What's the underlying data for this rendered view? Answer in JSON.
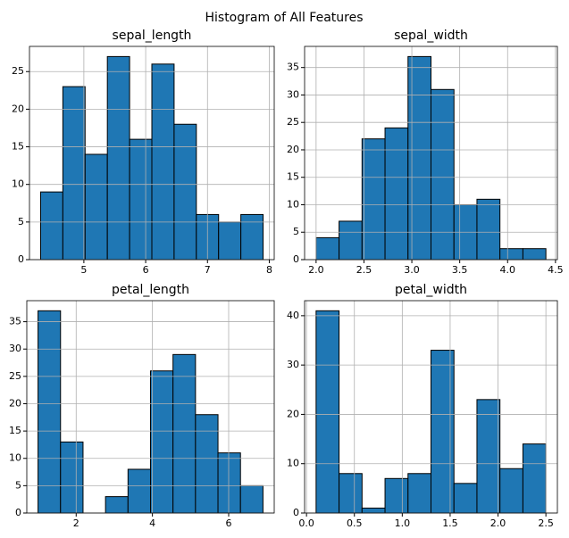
{
  "title": "Histogram of All Features",
  "chart_data": [
    {
      "type": "histogram",
      "title": "sepal_length",
      "color": "#1f77b4",
      "edgecolor": "#000000",
      "grid": true,
      "bins": [
        4.3,
        4.66,
        5.02,
        5.38,
        5.74,
        6.1,
        6.46,
        6.82,
        7.18,
        7.54,
        7.9
      ],
      "values": [
        9,
        23,
        14,
        27,
        16,
        26,
        18,
        6,
        5,
        6
      ],
      "xlim": [
        4.12,
        8.08
      ],
      "ylim": [
        0,
        28.35
      ],
      "xticks": [
        5,
        6,
        7,
        8
      ],
      "yticks": [
        0,
        5,
        10,
        15,
        20,
        25
      ]
    },
    {
      "type": "histogram",
      "title": "sepal_width",
      "color": "#1f77b4",
      "edgecolor": "#000000",
      "grid": true,
      "bins": [
        2.0,
        2.24,
        2.48,
        2.72,
        2.96,
        3.2,
        3.44,
        3.68,
        3.92,
        4.16,
        4.4
      ],
      "values": [
        4,
        7,
        22,
        24,
        37,
        31,
        10,
        11,
        2,
        2
      ],
      "xlim": [
        1.88,
        4.52
      ],
      "ylim": [
        0,
        38.85
      ],
      "xticks": [
        {
          "value": 2,
          "label": "2.0"
        },
        2.5,
        {
          "value": 3,
          "label": "3.0"
        },
        3.5,
        {
          "value": 4,
          "label": "4.0"
        },
        4.5
      ],
      "yticks": [
        0,
        5,
        10,
        15,
        20,
        25,
        30,
        35
      ]
    },
    {
      "type": "histogram",
      "title": "petal_length",
      "color": "#1f77b4",
      "edgecolor": "#000000",
      "grid": true,
      "bins": [
        1.0,
        1.59,
        2.18,
        2.77,
        3.36,
        3.95,
        4.54,
        5.13,
        5.72,
        6.31,
        6.9
      ],
      "values": [
        37,
        13,
        0,
        3,
        8,
        26,
        29,
        18,
        11,
        5
      ],
      "xlim": [
        0.705,
        7.195
      ],
      "ylim": [
        0,
        38.85
      ],
      "xticks": [
        2,
        4,
        6
      ],
      "yticks": [
        0,
        5,
        10,
        15,
        20,
        25,
        30,
        35
      ]
    },
    {
      "type": "histogram",
      "title": "petal_width",
      "color": "#1f77b4",
      "edgecolor": "#000000",
      "grid": true,
      "bins": [
        0.1,
        0.34,
        0.58,
        0.82,
        1.06,
        1.3,
        1.54,
        1.78,
        2.02,
        2.26,
        2.5
      ],
      "values": [
        41,
        8,
        1,
        7,
        8,
        33,
        6,
        23,
        9,
        14
      ],
      "xlim": [
        -0.02,
        2.62
      ],
      "ylim": [
        0,
        43.05
      ],
      "xticks": [
        {
          "value": 0,
          "label": "0.0"
        },
        0.5,
        {
          "value": 1,
          "label": "1.0"
        },
        1.5,
        {
          "value": 2,
          "label": "2.0"
        },
        2.5
      ],
      "yticks": [
        0,
        10,
        20,
        30,
        40
      ]
    }
  ]
}
